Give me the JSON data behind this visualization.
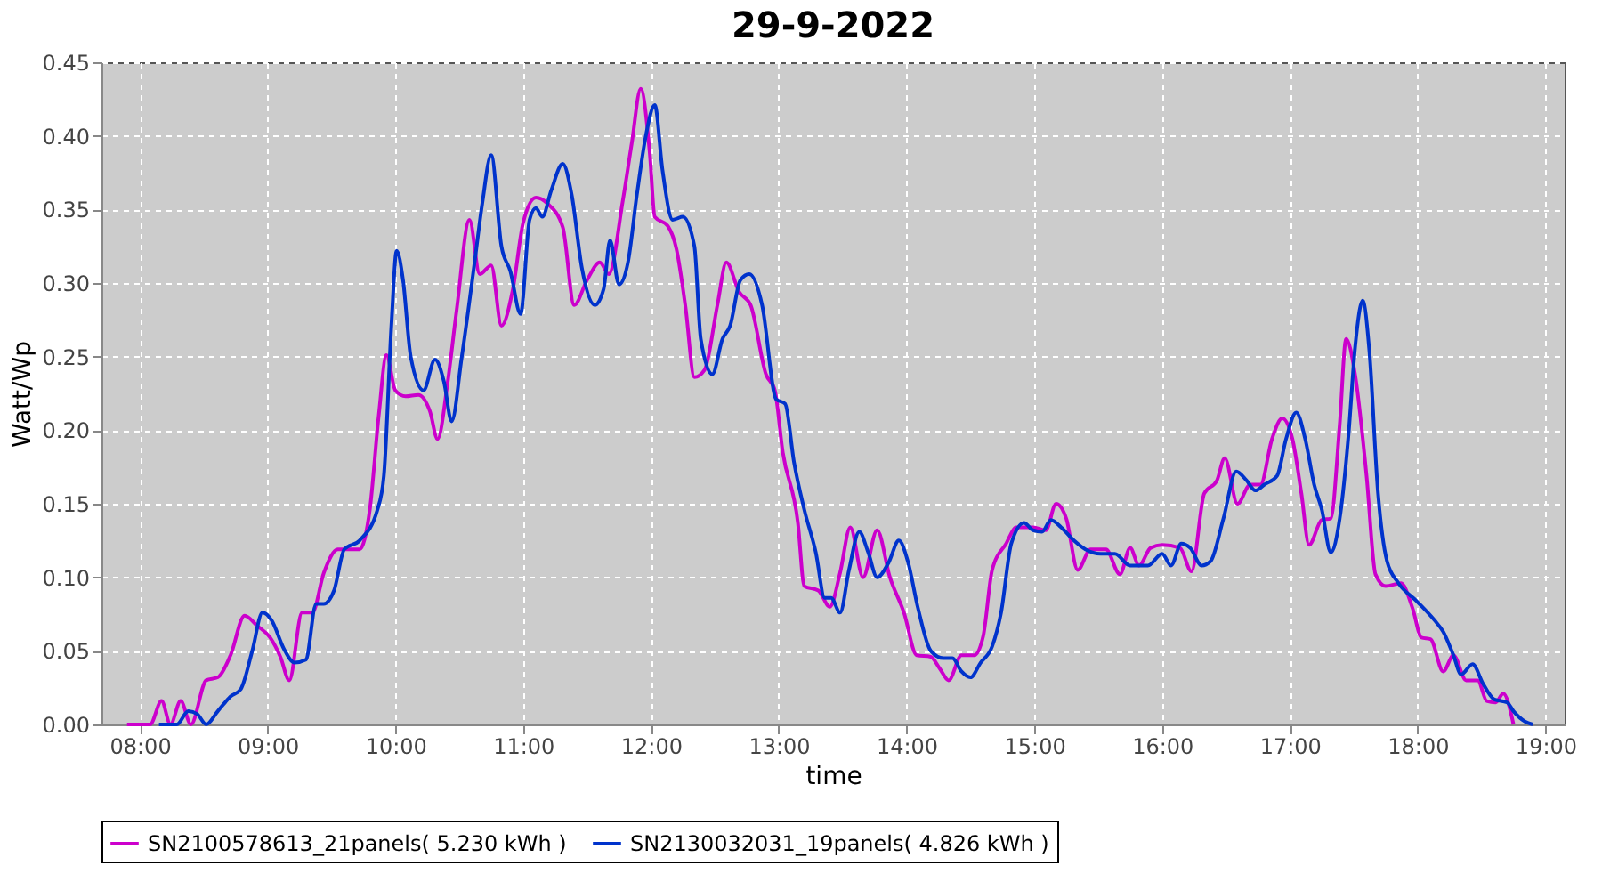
{
  "chart_data": {
    "type": "line",
    "title": "29-9-2022",
    "xlabel": "time",
    "ylabel": "Watt/Wp",
    "xlim": [
      7.7,
      19.15
    ],
    "xticks": [
      {
        "value": 8,
        "label": "08:00"
      },
      {
        "value": 9,
        "label": "09:00"
      },
      {
        "value": 10,
        "label": "10:00"
      },
      {
        "value": 11,
        "label": "11:00"
      },
      {
        "value": 12,
        "label": "12:00"
      },
      {
        "value": 13,
        "label": "13:00"
      },
      {
        "value": 14,
        "label": "14:00"
      },
      {
        "value": 15,
        "label": "15:00"
      },
      {
        "value": 16,
        "label": "16:00"
      },
      {
        "value": 17,
        "label": "17:00"
      },
      {
        "value": 18,
        "label": "18:00"
      },
      {
        "value": 19,
        "label": "19:00"
      }
    ],
    "ylim": [
      0,
      0.45
    ],
    "yticks": [
      {
        "value": 0,
        "label": "0.00"
      },
      0.05,
      {
        "value": 0.1,
        "label": "0.10"
      },
      0.15,
      {
        "value": 0.2,
        "label": "0.20"
      },
      0.25,
      {
        "value": 0.3,
        "label": "0.30"
      },
      0.35,
      {
        "value": 0.4,
        "label": "0.40"
      },
      0.45
    ],
    "grid": true,
    "legend": "bottom",
    "marker": "none",
    "line_style": "solid",
    "series": [
      {
        "name": "SN2100578613_21panels( 5.230 kWh )",
        "color": "#cc00cc",
        "x": [
          7.9,
          8.0,
          8.08,
          8.17,
          8.24,
          8.32,
          8.4,
          8.52,
          8.61,
          8.71,
          8.82,
          8.92,
          9.02,
          9.1,
          9.17,
          9.27,
          9.35,
          9.44,
          9.55,
          9.72,
          9.8,
          9.87,
          9.93,
          10.0,
          10.08,
          10.18,
          10.27,
          10.33,
          10.41,
          10.48,
          10.58,
          10.66,
          10.75,
          10.83,
          10.92,
          11.0,
          11.1,
          11.19,
          11.31,
          11.4,
          11.5,
          11.6,
          11.67,
          11.78,
          11.85,
          11.92,
          11.99,
          12.03,
          12.13,
          12.2,
          12.27,
          12.34,
          12.42,
          12.52,
          12.59,
          12.69,
          12.78,
          12.9,
          12.97,
          13.03,
          13.15,
          13.2,
          13.31,
          13.4,
          13.48,
          13.56,
          13.66,
          13.77,
          13.87,
          13.98,
          14.08,
          14.19,
          14.26,
          14.33,
          14.43,
          14.53,
          14.6,
          14.67,
          14.78,
          14.86,
          14.99,
          15.09,
          15.17,
          15.25,
          15.34,
          15.44,
          15.56,
          15.67,
          15.75,
          15.82,
          15.91,
          16.0,
          16.14,
          16.23,
          16.33,
          16.43,
          16.49,
          16.59,
          16.69,
          16.77,
          16.86,
          16.94,
          17.02,
          17.09,
          17.15,
          17.25,
          17.32,
          17.39,
          17.44,
          17.51,
          17.6,
          17.67,
          17.75,
          17.87,
          17.96,
          18.03,
          18.1,
          18.2,
          18.28,
          18.38,
          18.47,
          18.54,
          18.61,
          18.67,
          18.75
        ],
        "values": [
          0,
          0,
          0,
          0.016,
          0,
          0.016,
          0,
          0.03,
          0.032,
          0.047,
          0.074,
          0.067,
          0.059,
          0.046,
          0.03,
          0.076,
          0.076,
          0.103,
          0.119,
          0.119,
          0.146,
          0.21,
          0.251,
          0.227,
          0.223,
          0.224,
          0.213,
          0.194,
          0.233,
          0.282,
          0.343,
          0.306,
          0.312,
          0.271,
          0.296,
          0.341,
          0.358,
          0.354,
          0.338,
          0.285,
          0.302,
          0.314,
          0.306,
          0.356,
          0.395,
          0.432,
          0.389,
          0.345,
          0.339,
          0.323,
          0.284,
          0.236,
          0.241,
          0.285,
          0.314,
          0.294,
          0.285,
          0.238,
          0.227,
          0.186,
          0.137,
          0.094,
          0.091,
          0.08,
          0.103,
          0.134,
          0.1,
          0.132,
          0.1,
          0.076,
          0.047,
          0.046,
          0.038,
          0.03,
          0.047,
          0.047,
          0.06,
          0.105,
          0.123,
          0.134,
          0.134,
          0.132,
          0.15,
          0.14,
          0.105,
          0.119,
          0.119,
          0.102,
          0.12,
          0.108,
          0.12,
          0.122,
          0.12,
          0.104,
          0.157,
          0.166,
          0.181,
          0.15,
          0.163,
          0.163,
          0.194,
          0.208,
          0.194,
          0.157,
          0.122,
          0.139,
          0.14,
          0.204,
          0.262,
          0.238,
          0.169,
          0.102,
          0.094,
          0.096,
          0.079,
          0.059,
          0.058,
          0.036,
          0.047,
          0.03,
          0.03,
          0.016,
          0.015,
          0.021,
          0
        ]
      },
      {
        "name": "SN2130032031_19panels( 4.826 kWh )",
        "color": "#0033cc",
        "x": [
          8.15,
          8.29,
          8.38,
          8.45,
          8.52,
          8.61,
          8.71,
          8.79,
          8.88,
          8.96,
          9.03,
          9.13,
          9.21,
          9.3,
          9.38,
          9.44,
          9.52,
          9.6,
          9.72,
          9.86,
          9.91,
          9.97,
          10.01,
          10.06,
          10.12,
          10.22,
          10.31,
          10.38,
          10.44,
          10.52,
          10.62,
          10.68,
          10.75,
          10.83,
          10.9,
          10.98,
          11.05,
          11.1,
          11.15,
          11.22,
          11.31,
          11.38,
          11.46,
          11.56,
          11.63,
          11.68,
          11.75,
          11.82,
          11.89,
          11.96,
          12.03,
          12.09,
          12.17,
          12.25,
          12.34,
          12.39,
          12.48,
          12.56,
          12.62,
          12.7,
          12.77,
          12.87,
          12.98,
          13.05,
          13.12,
          13.2,
          13.29,
          13.36,
          13.41,
          13.48,
          13.55,
          13.63,
          13.7,
          13.77,
          13.86,
          13.94,
          14.01,
          14.09,
          14.19,
          14.29,
          14.36,
          14.43,
          14.5,
          14.58,
          14.67,
          14.74,
          14.82,
          14.92,
          14.99,
          15.06,
          15.13,
          15.21,
          15.31,
          15.4,
          15.52,
          15.63,
          15.75,
          15.89,
          16.0,
          16.07,
          16.15,
          16.22,
          16.31,
          16.38,
          16.48,
          16.58,
          16.66,
          16.73,
          16.8,
          16.9,
          16.97,
          17.05,
          17.12,
          17.19,
          17.25,
          17.32,
          17.39,
          17.46,
          17.51,
          17.57,
          17.62,
          17.69,
          17.76,
          17.85,
          17.99,
          18.13,
          18.2,
          18.28,
          18.34,
          18.43,
          18.51,
          18.6,
          18.7,
          18.75,
          18.84,
          18.9
        ],
        "values": [
          0,
          0,
          0.009,
          0.007,
          0,
          0.009,
          0.019,
          0.024,
          0.05,
          0.076,
          0.071,
          0.051,
          0.042,
          0.044,
          0.082,
          0.082,
          0.091,
          0.119,
          0.125,
          0.146,
          0.169,
          0.273,
          0.322,
          0.302,
          0.25,
          0.227,
          0.248,
          0.233,
          0.206,
          0.25,
          0.314,
          0.354,
          0.387,
          0.325,
          0.308,
          0.279,
          0.343,
          0.351,
          0.345,
          0.363,
          0.381,
          0.36,
          0.31,
          0.285,
          0.296,
          0.329,
          0.299,
          0.314,
          0.36,
          0.4,
          0.421,
          0.377,
          0.343,
          0.345,
          0.325,
          0.262,
          0.238,
          0.262,
          0.271,
          0.302,
          0.306,
          0.285,
          0.221,
          0.218,
          0.178,
          0.146,
          0.117,
          0.086,
          0.086,
          0.076,
          0.105,
          0.131,
          0.117,
          0.1,
          0.11,
          0.125,
          0.111,
          0.079,
          0.05,
          0.045,
          0.045,
          0.036,
          0.032,
          0.042,
          0.053,
          0.076,
          0.123,
          0.137,
          0.132,
          0.131,
          0.139,
          0.134,
          0.125,
          0.119,
          0.116,
          0.116,
          0.108,
          0.108,
          0.116,
          0.108,
          0.123,
          0.12,
          0.108,
          0.111,
          0.14,
          0.172,
          0.166,
          0.159,
          0.163,
          0.169,
          0.194,
          0.212,
          0.194,
          0.163,
          0.146,
          0.117,
          0.14,
          0.198,
          0.256,
          0.288,
          0.256,
          0.157,
          0.111,
          0.096,
          0.084,
          0.071,
          0.063,
          0.047,
          0.034,
          0.041,
          0.028,
          0.017,
          0.015,
          0.009,
          0.002,
          0
        ]
      }
    ]
  }
}
